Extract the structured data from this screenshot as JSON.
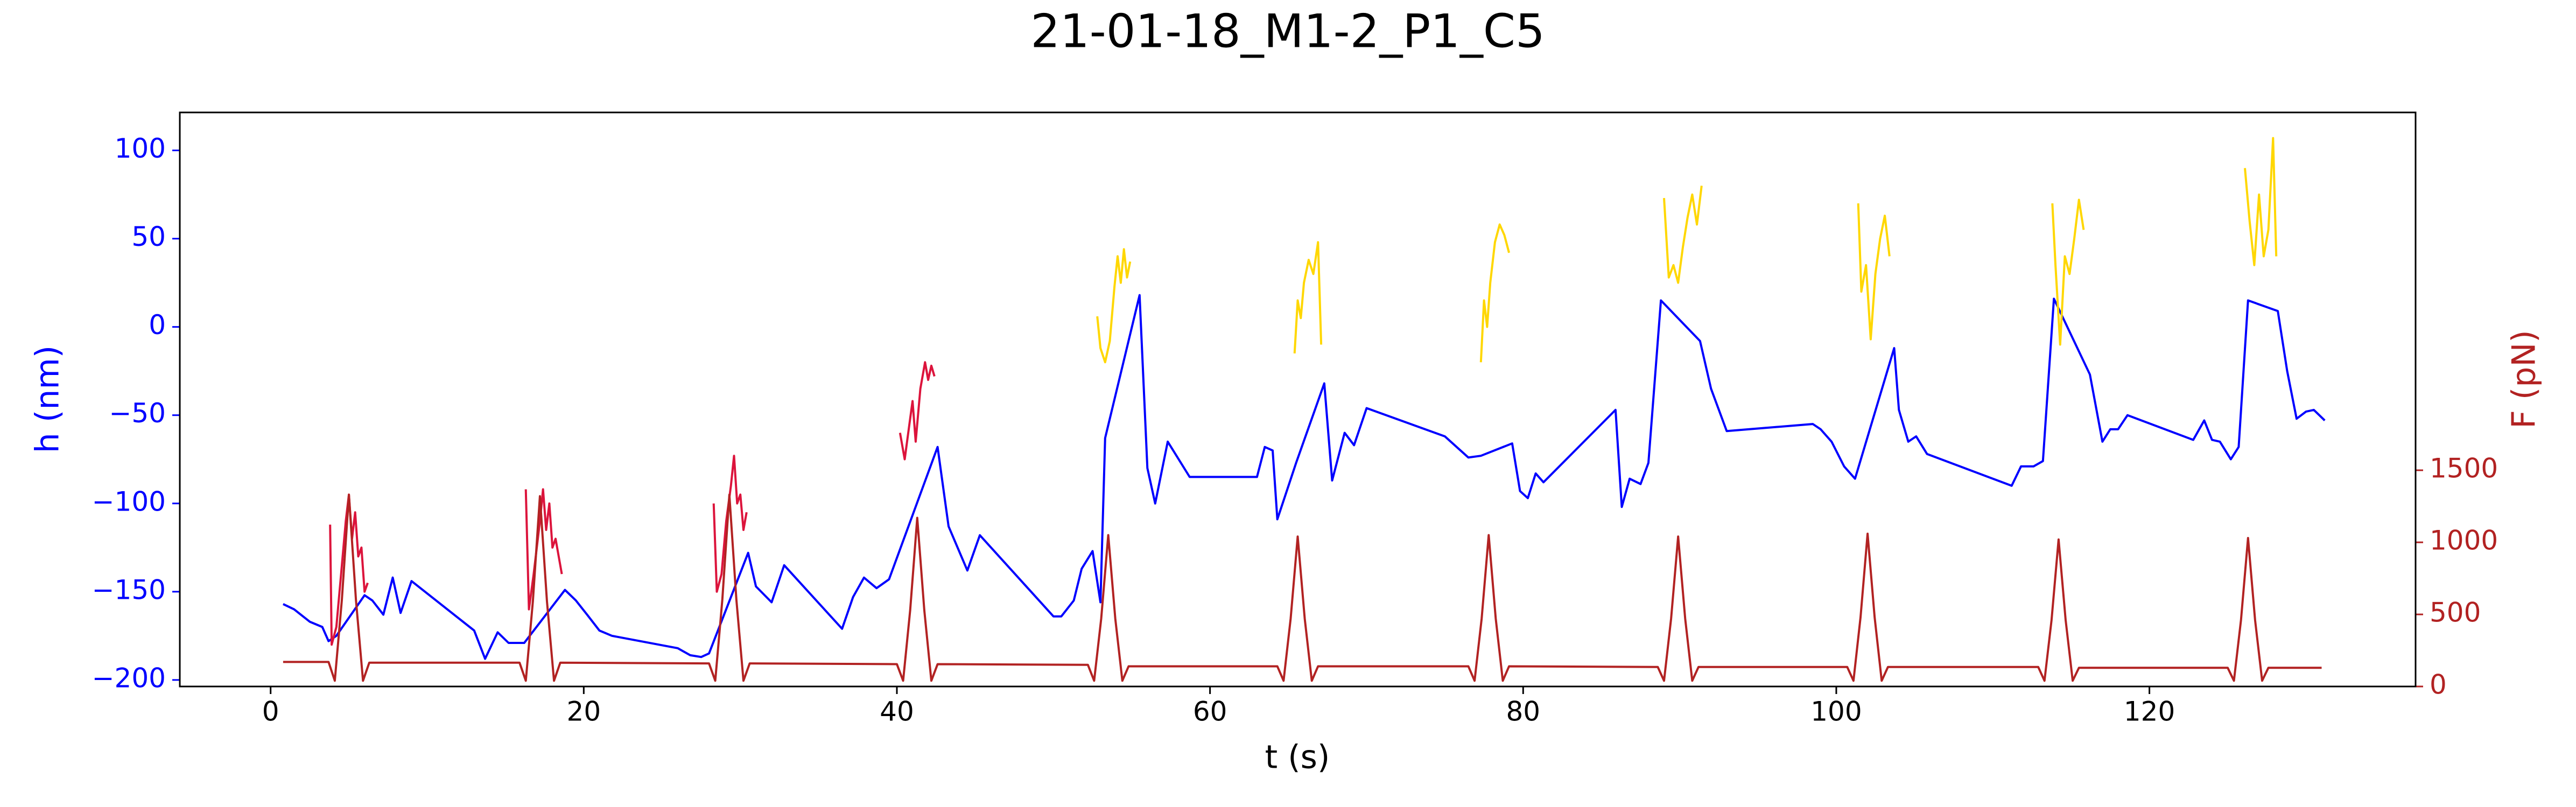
{
  "chart_data": {
    "type": "line",
    "title": "21-01-18_M1-2_P1_C5",
    "xlabel": "t (s)",
    "ylabel": "h (nm)",
    "y2label": "F (pN)",
    "ycolor": "#0000ff",
    "y2color": "#b22222",
    "xlim": [
      -5.8,
      137
    ],
    "ylim": [
      -203.7,
      121.5
    ],
    "y2lim": [
      0,
      3982
    ],
    "xticks": [
      0,
      20,
      40,
      60,
      80,
      100,
      120
    ],
    "yticks": [
      {
        "value": -200,
        "label": "−200"
      },
      {
        "value": -150,
        "label": "−150"
      },
      {
        "value": -100,
        "label": "−100"
      },
      {
        "value": -50,
        "label": "−50"
      },
      0,
      50,
      100
    ],
    "y2ticks": [
      0,
      500,
      1000,
      1500
    ],
    "series": [
      {
        "color": "#0000ff",
        "x": [
          0.8,
          1.5,
          2.5,
          3.3,
          3.7,
          4.2,
          6.0,
          6.5,
          7.2,
          7.8,
          8.3,
          9,
          13,
          13.7,
          14.5,
          15.2,
          16.2,
          18.8,
          19.5,
          20.3,
          21,
          21.8,
          26,
          26.8,
          27.5,
          28,
          30.5,
          31,
          32,
          32.8,
          36.5,
          37.2,
          37.9,
          38.7,
          39.5,
          42.6,
          43.3,
          44.5,
          45.3,
          50,
          50.5,
          51.3,
          51.8,
          52.5,
          53,
          53.3,
          55.5,
          56,
          56.5,
          57.3,
          58.7,
          63,
          63.5,
          64,
          64.3,
          65.5,
          67.3,
          67.8,
          68.6,
          69.2,
          70,
          75,
          76.5,
          77.3,
          79.3,
          79.8,
          80.3,
          80.8,
          81.3,
          85.9,
          86.3,
          86.8,
          87.5,
          88,
          88.8,
          91.3,
          92,
          93,
          98.5,
          99,
          99.7,
          100.5,
          101.2,
          103.7,
          104,
          104.6,
          105.1,
          105.8,
          111.2,
          111.8,
          112.6,
          113.2,
          113.9,
          116.2,
          117,
          117.5,
          118,
          118.6,
          122.8,
          123.5,
          124,
          124.5,
          125.2,
          125.7,
          126.3,
          128.2,
          128.8,
          129.4,
          130,
          130.5,
          131.2
        ],
        "values": [
          -157,
          -160,
          -167,
          -170,
          -178,
          -175,
          -152,
          -155,
          -163,
          -142,
          -162,
          -144,
          -172,
          -188,
          -173,
          -179,
          -179,
          -149,
          -155,
          -164,
          -172,
          -175,
          -182,
          -186,
          -187,
          -185,
          -128,
          -147,
          -156,
          -135,
          -171,
          -153,
          -142,
          -148,
          -143,
          -68,
          -113,
          -138,
          -118,
          -164,
          -164,
          -155,
          -137,
          -127,
          -156,
          -63,
          18,
          -80,
          -100,
          -65,
          -85,
          -85,
          -68,
          -70,
          -109,
          -77,
          -32,
          -87,
          -60,
          -67,
          -46,
          -62,
          -74,
          -73,
          -66,
          -93,
          -97,
          -83,
          -88,
          -47,
          -102,
          -86,
          -89,
          -77,
          15,
          -8,
          -35,
          -59,
          -55,
          -58,
          -65,
          -79,
          -86,
          -12,
          -47,
          -65,
          -62,
          -72,
          -90,
          -79,
          -79,
          -76,
          16,
          -27,
          -65,
          -58,
          -58,
          -50,
          -64,
          -53,
          -64,
          -65,
          -75,
          -68,
          15,
          9,
          -25,
          -52,
          -48,
          -47,
          -53
        ]
      },
      {
        "color": "#dc143c",
        "x": [
          3.8,
          3.9,
          4.2,
          4.5,
          4.8,
          5.0,
          5.2,
          5.4,
          5.6,
          5.8,
          6.0,
          6.2,
          null,
          16.3,
          16.5,
          16.8,
          17.2,
          17.4,
          17.6,
          17.8,
          18.0,
          18.2,
          18.4,
          18.6,
          null,
          28.3,
          28.5,
          28.8,
          29.1,
          29.4,
          29.6,
          29.8,
          30.0,
          30.2,
          30.4,
          null,
          40.2,
          40.5,
          40.8,
          41.0,
          41.2,
          41.5,
          41.8,
          42.0,
          42.2,
          42.4
        ],
        "values": [
          -112,
          -180,
          -170,
          -140,
          -110,
          -95,
          -120,
          -105,
          -130,
          -125,
          -150,
          -145,
          null,
          -92,
          -160,
          -140,
          -110,
          -92,
          -115,
          -100,
          -125,
          -120,
          -130,
          -140,
          null,
          -100,
          -150,
          -140,
          -110,
          -90,
          -73,
          -100,
          -95,
          -115,
          -105,
          null,
          -60,
          -75,
          -55,
          -42,
          -65,
          -35,
          -20,
          -30,
          -22,
          -28
        ]
      },
      {
        "color": "#ffd700",
        "x": [
          52.8,
          53.0,
          53.3,
          53.6,
          53.9,
          54.1,
          54.3,
          54.5,
          54.7,
          54.9,
          null,
          65.4,
          65.6,
          65.8,
          66.0,
          66.3,
          66.6,
          66.9,
          67.1,
          null,
          77.3,
          77.5,
          77.7,
          77.9,
          78.2,
          78.5,
          78.8,
          79.1,
          null,
          89.0,
          89.3,
          89.6,
          89.9,
          90.2,
          90.5,
          90.8,
          91.1,
          91.4,
          null,
          101.4,
          101.6,
          101.9,
          102.2,
          102.5,
          102.8,
          103.1,
          103.4,
          null,
          113.8,
          114.0,
          114.3,
          114.6,
          114.9,
          115.2,
          115.5,
          115.8,
          null,
          126.1,
          126.4,
          126.7,
          127.0,
          127.3,
          127.6,
          127.9,
          128.1
        ],
        "values": [
          6,
          -12,
          -20,
          -8,
          23,
          40,
          25,
          44,
          28,
          37,
          null,
          -15,
          15,
          5,
          25,
          38,
          30,
          48,
          -10,
          null,
          -20,
          15,
          0,
          25,
          48,
          58,
          52,
          42,
          null,
          73,
          28,
          35,
          25,
          45,
          62,
          75,
          58,
          80,
          null,
          70,
          20,
          35,
          -7,
          30,
          50,
          63,
          40,
          null,
          70,
          35,
          -10,
          40,
          30,
          50,
          72,
          55,
          null,
          90,
          60,
          35,
          75,
          40,
          55,
          107,
          40
        ]
      },
      {
        "color": "#b22222",
        "axis": "y2",
        "x": [
          0.8,
          3.7,
          4.1,
          4.55,
          5.0,
          5.45,
          5.9,
          6.3,
          15.9,
          16.3,
          16.75,
          17.2,
          17.65,
          18.1,
          18.5,
          28.0,
          28.4,
          28.85,
          29.3,
          29.75,
          30.2,
          30.6,
          40.0,
          40.4,
          40.85,
          41.3,
          41.75,
          42.2,
          42.6,
          52.2,
          52.6,
          53.05,
          53.5,
          53.95,
          54.4,
          54.8,
          64.3,
          64.7,
          65.15,
          65.6,
          66.05,
          66.5,
          66.9,
          76.5,
          76.9,
          77.35,
          77.8,
          78.25,
          78.7,
          79.1,
          88.6,
          89.0,
          89.45,
          89.9,
          90.35,
          90.8,
          91.2,
          100.7,
          101.1,
          101.55,
          102.0,
          102.45,
          102.9,
          103.3,
          112.9,
          113.3,
          113.75,
          114.2,
          114.65,
          115.1,
          115.5,
          125.0,
          125.4,
          125.85,
          126.3,
          126.75,
          127.2,
          127.6,
          131.0
        ],
        "values": [
          170,
          170,
          40,
          600,
          1330,
          600,
          40,
          165,
          165,
          40,
          590,
          1320,
          590,
          40,
          165,
          160,
          40,
          600,
          1330,
          600,
          40,
          160,
          155,
          40,
          530,
          1170,
          530,
          40,
          155,
          150,
          40,
          470,
          1050,
          470,
          40,
          140,
          140,
          40,
          470,
          1040,
          470,
          40,
          140,
          140,
          40,
          470,
          1050,
          470,
          40,
          140,
          135,
          40,
          470,
          1040,
          470,
          40,
          135,
          135,
          40,
          480,
          1060,
          480,
          40,
          135,
          135,
          40,
          460,
          1020,
          460,
          40,
          130,
          130,
          40,
          460,
          1030,
          460,
          40,
          130,
          130
        ]
      }
    ]
  }
}
